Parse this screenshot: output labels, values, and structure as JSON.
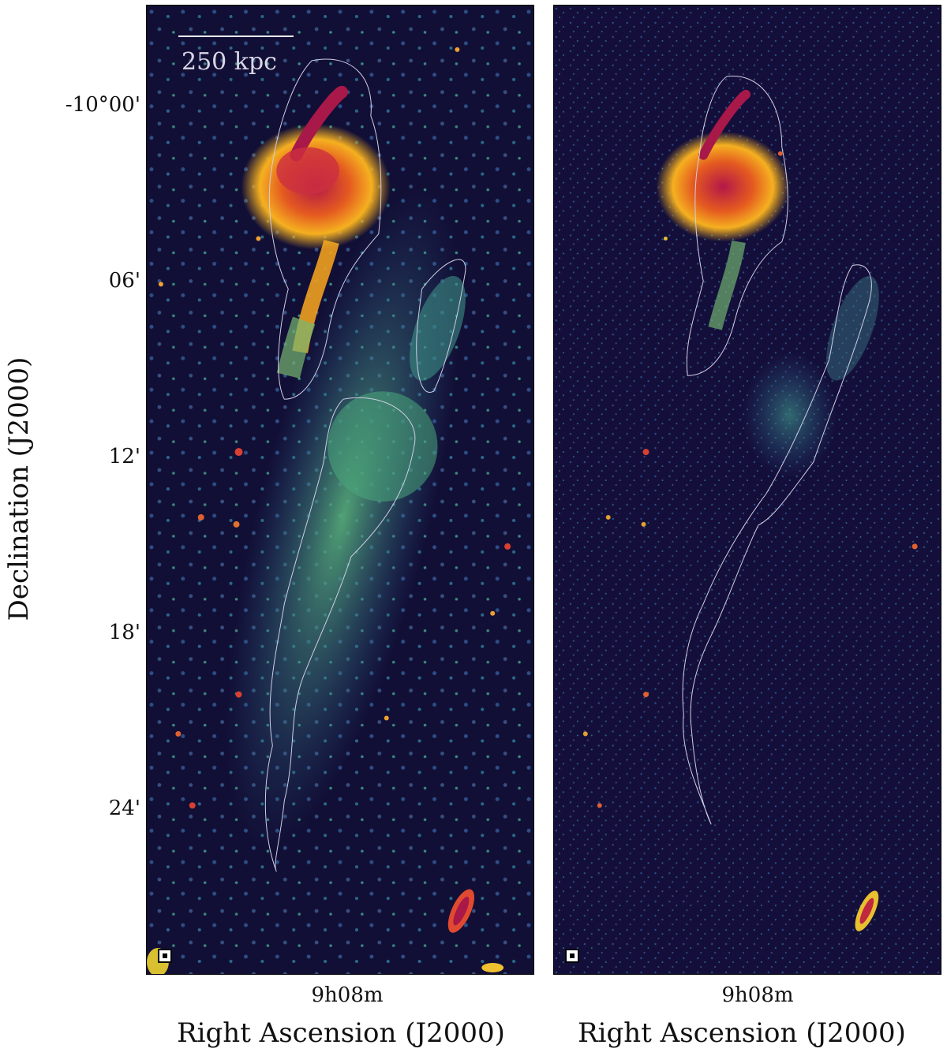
{
  "scalebar": {
    "label": "250 kpc"
  },
  "axes": {
    "xlabel": "Right Ascension (J2000)",
    "ylabel": "Declination (J2000)",
    "ra_tick": "9h08m",
    "dec_ticks": [
      "-10°00'",
      "06'",
      "12'",
      "18'",
      "24'"
    ]
  },
  "colors": {
    "background": "#120f36",
    "faint": "#2a5a8a",
    "mid": "#3e9a8a",
    "bright": "#e8c030",
    "peak": "#b01a3a",
    "contour": "#cfcfe6"
  },
  "panels": [
    "left",
    "right"
  ]
}
